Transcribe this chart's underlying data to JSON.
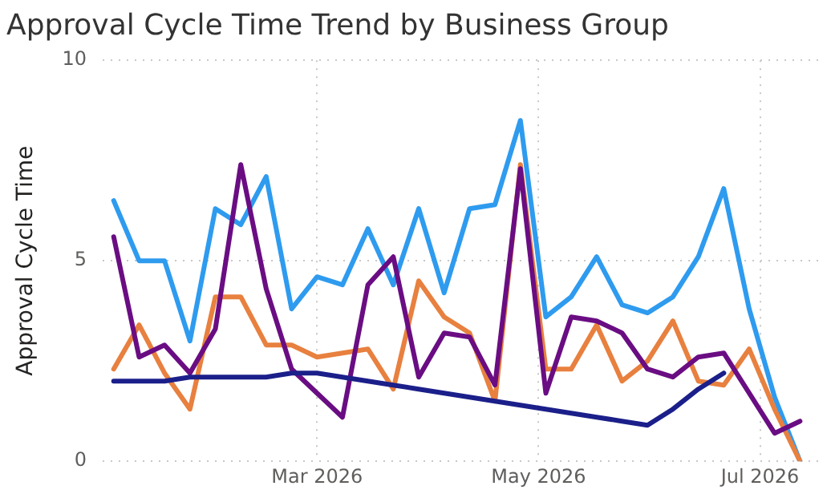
{
  "chart_data": {
    "type": "line",
    "title": "Approval Cycle Time Trend by Business Group",
    "ylabel": "Approval Cycle Time",
    "x": [
      "2026-01-04",
      "2026-01-11",
      "2026-01-18",
      "2026-01-25",
      "2026-02-01",
      "2026-02-08",
      "2026-02-15",
      "2026-02-22",
      "2026-03-01",
      "2026-03-08",
      "2026-03-15",
      "2026-03-22",
      "2026-03-29",
      "2026-04-05",
      "2026-04-12",
      "2026-04-19",
      "2026-04-26",
      "2026-05-03",
      "2026-05-10",
      "2026-05-17",
      "2026-05-24",
      "2026-05-31",
      "2026-06-07",
      "2026-06-14",
      "2026-06-21",
      "2026-06-28",
      "2026-07-05",
      "2026-07-12"
    ],
    "series": [
      {
        "color": "#2e9bef",
        "values": [
          6.5,
          5.0,
          5.0,
          3.0,
          6.3,
          5.9,
          7.1,
          3.8,
          4.6,
          4.4,
          5.8,
          4.4,
          6.3,
          4.2,
          6.3,
          6.4,
          8.5,
          3.6,
          4.1,
          5.1,
          3.9,
          3.7,
          4.1,
          5.1,
          6.8,
          3.8,
          1.6,
          0
        ]
      },
      {
        "color": "#e8803f",
        "values": [
          2.3,
          3.4,
          2.2,
          1.3,
          4.1,
          4.1,
          2.9,
          2.9,
          2.6,
          2.7,
          2.8,
          1.8,
          4.5,
          3.6,
          3.2,
          1.5,
          7.4,
          2.3,
          2.3,
          3.4,
          2.0,
          2.5,
          3.5,
          2.0,
          1.9,
          2.8,
          1.3,
          0
        ]
      },
      {
        "color": "#6a0d83",
        "values": [
          5.6,
          2.6,
          2.9,
          2.2,
          3.3,
          7.4,
          4.3,
          2.3,
          1.7,
          1.1,
          4.4,
          5.1,
          2.1,
          3.2,
          3.1,
          1.9,
          7.3,
          1.7,
          3.6,
          3.5,
          3.2,
          2.3,
          2.1,
          2.6,
          2.7,
          1.7,
          0.7,
          1.0
        ]
      },
      {
        "color": "#1b1f8a",
        "values": [
          2.0,
          2.0,
          2.0,
          2.1,
          2.1,
          2.1,
          2.1,
          2.2,
          2.2,
          2.1,
          2.0,
          1.9,
          1.8,
          1.7,
          1.6,
          1.5,
          1.4,
          1.3,
          1.2,
          1.1,
          1.0,
          0.9,
          1.3,
          1.8,
          2.2,
          null,
          null,
          null
        ]
      }
    ],
    "xlim": [
      "2026-01-01",
      "2026-07-17"
    ],
    "xticks": [
      {
        "value": "2026-03-01",
        "label": "Mar 2026"
      },
      {
        "value": "2026-05-01",
        "label": "May 2026"
      },
      {
        "value": "2026-07-01",
        "label": "Jul 2026"
      }
    ],
    "ylim": [
      0,
      10
    ],
    "yticks": [
      0,
      5,
      10
    ],
    "grid": true,
    "legend": false,
    "marker": "none",
    "line_style": "solid"
  }
}
